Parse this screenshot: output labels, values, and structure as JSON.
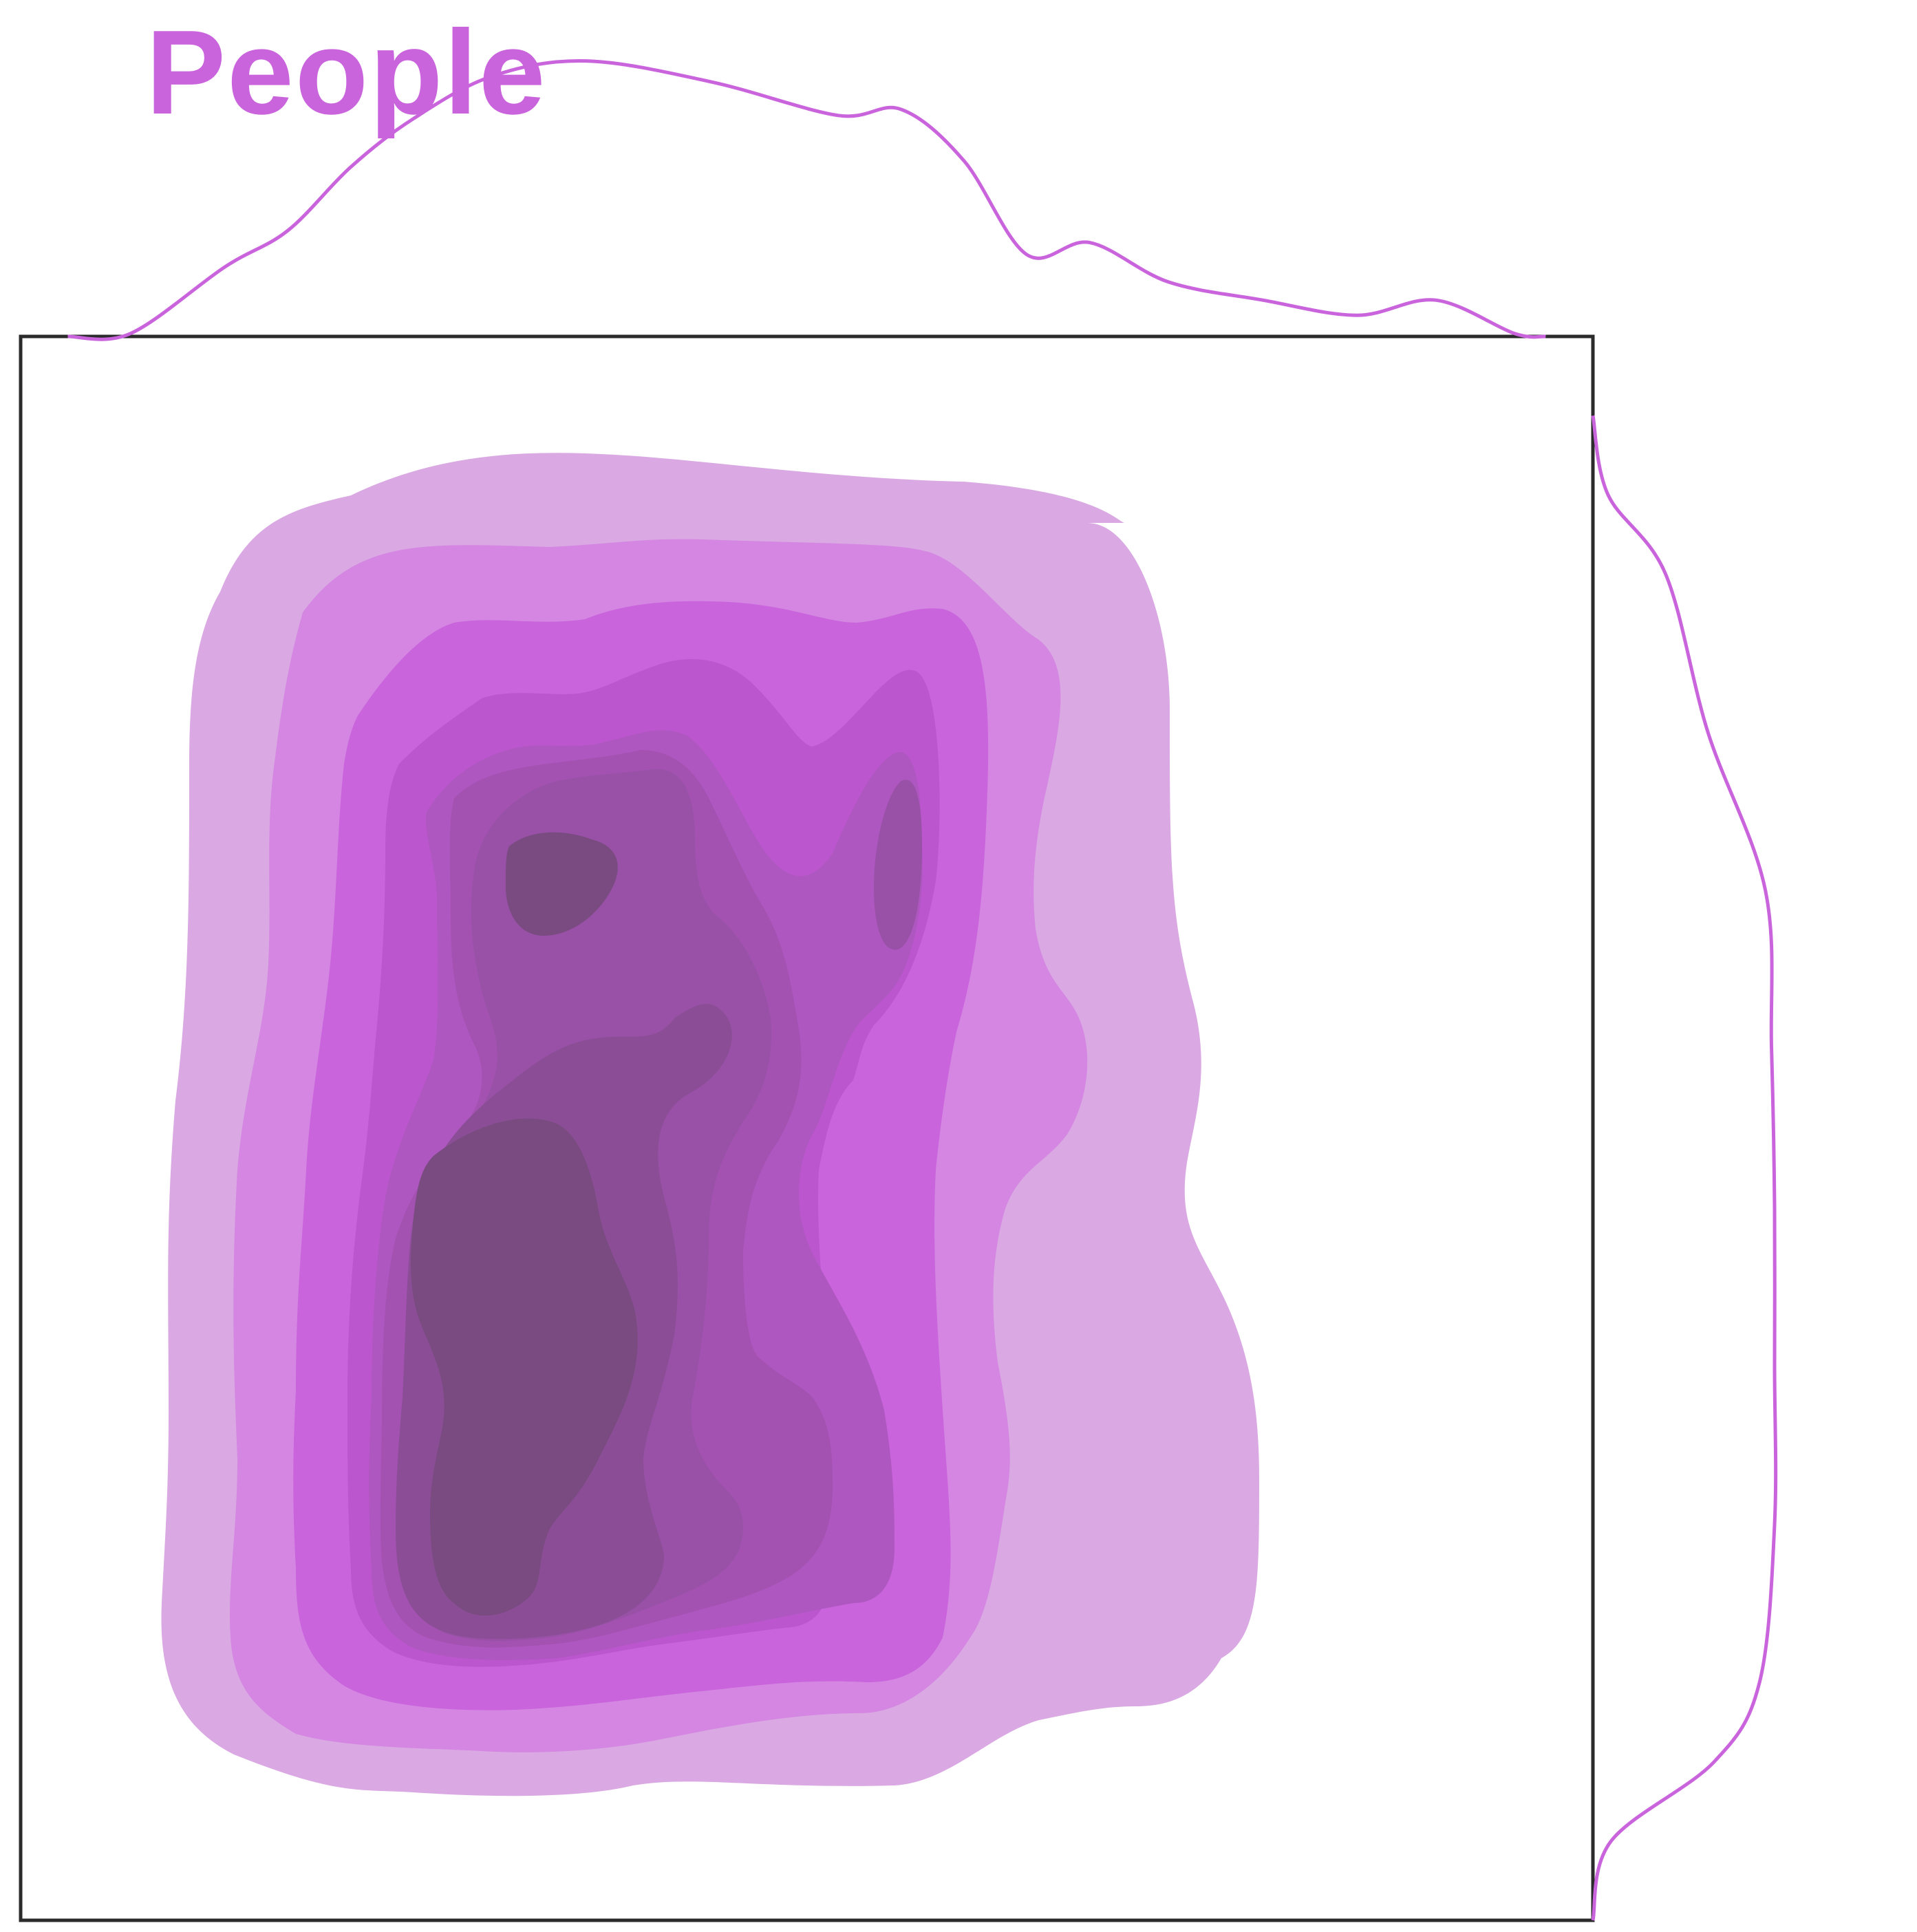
{
  "chart_data": {
    "type": "kde_joint",
    "title": "",
    "xlabel": "",
    "ylabel": "",
    "legend": [
      {
        "name": "People",
        "color": "#c964dc"
      }
    ],
    "legend_position": "top-left",
    "grid": false,
    "axes_ticks": false,
    "xlim": [
      0,
      10
    ],
    "ylim": [
      0,
      10
    ],
    "contour_levels": [
      {
        "level": 1,
        "color": "#daa9e3"
      },
      {
        "level": 2,
        "color": "#d486e2"
      },
      {
        "level": 3,
        "color": "#c964dc"
      },
      {
        "level": 4,
        "color": "#bc56cf"
      },
      {
        "level": 5,
        "color": "#af57c0"
      },
      {
        "level": 6,
        "color": "#a352b2"
      },
      {
        "level": 7,
        "color": "#9851a6"
      },
      {
        "level": 8,
        "color": "#8b4e96"
      },
      {
        "level": 9,
        "color": "#794b80"
      }
    ],
    "x_marginal_density": [
      [
        0.3,
        0.0
      ],
      [
        0.7,
        0.01
      ],
      [
        1.3,
        0.23
      ],
      [
        1.7,
        0.35
      ],
      [
        2.1,
        0.56
      ],
      [
        2.5,
        0.72
      ],
      [
        3.0,
        0.86
      ],
      [
        3.6,
        0.91
      ],
      [
        4.4,
        0.84
      ],
      [
        5.2,
        0.73
      ],
      [
        5.6,
        0.75
      ],
      [
        6.0,
        0.58
      ],
      [
        6.4,
        0.27
      ],
      [
        6.8,
        0.31
      ],
      [
        7.3,
        0.18
      ],
      [
        7.9,
        0.12
      ],
      [
        8.5,
        0.07
      ],
      [
        9.0,
        0.12
      ],
      [
        9.5,
        0.01
      ],
      [
        9.7,
        0.0
      ]
    ],
    "y_marginal_density": [
      [
        0.0,
        0.0
      ],
      [
        0.5,
        0.06
      ],
      [
        1.0,
        0.4
      ],
      [
        1.5,
        0.55
      ],
      [
        2.5,
        0.6
      ],
      [
        3.5,
        0.6
      ],
      [
        4.5,
        0.6
      ],
      [
        5.5,
        0.59
      ],
      [
        6.5,
        0.57
      ],
      [
        7.5,
        0.38
      ],
      [
        8.5,
        0.24
      ],
      [
        9.0,
        0.05
      ],
      [
        9.5,
        0.0
      ]
    ]
  }
}
